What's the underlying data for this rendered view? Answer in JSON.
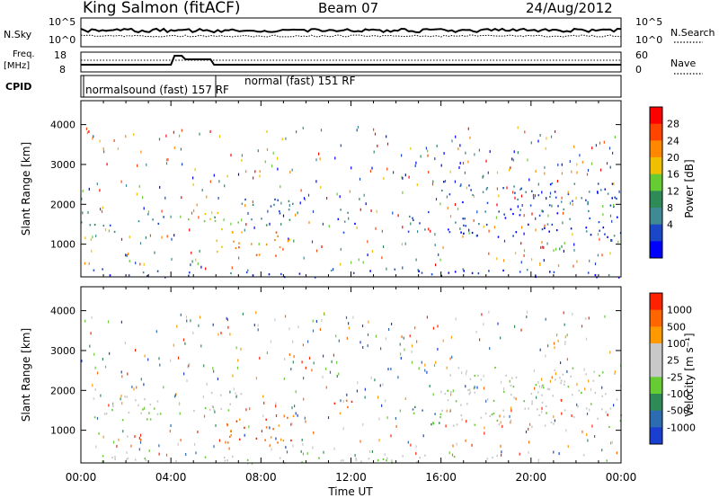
{
  "header": {
    "station": "King Salmon (fitACF)",
    "beam": "Beam 07",
    "date": "24/Aug/2012"
  },
  "top_panels": {
    "nsky_label": "N.Sky",
    "nsky_ticks": [
      "10^5",
      "10^0"
    ],
    "nsearch_label": "N.Search",
    "nsearch_ticks": [
      "10^5",
      "10^0"
    ],
    "freq_label": "Freq.",
    "freq_unit": "[MHz]",
    "freq_ticks": [
      "18",
      "8"
    ],
    "nave_label": "Nave",
    "nave_ticks": [
      "60",
      "0"
    ],
    "cpid_label": "CPID",
    "cpid_entries": [
      {
        "text": "normalsound (fast) 157 RF",
        "start_hour": 0.1
      },
      {
        "text": "normal (fast) 151 RF",
        "start_hour": 6.0
      }
    ]
  },
  "colors": {
    "power": [
      "#0000ff",
      "#1a46c8",
      "#3f8a94",
      "#2e8b57",
      "#66cc33",
      "#f0c000",
      "#ff8800",
      "#ff4400",
      "#ff0000"
    ],
    "velocity": [
      "#1a3fd0",
      "#2d6cb0",
      "#2e8b57",
      "#66cc33",
      "#c8c8c8",
      "#c8c8c8",
      "#ff9900",
      "#ff6600",
      "#ff2200"
    ]
  },
  "chart_data": [
    {
      "type": "heatmap",
      "panel": "power",
      "ylabel": "Slant Range [km]",
      "xlabel": "Time UT",
      "xlim": [
        0,
        24
      ],
      "ylim": [
        180,
        4600
      ],
      "xticks": [
        "00:00",
        "04:00",
        "08:00",
        "12:00",
        "16:00",
        "20:00",
        "00:00"
      ],
      "yticks": [
        1000,
        2000,
        3000,
        4000
      ],
      "colorbar": {
        "label": "Power [dB]",
        "ticks": [
          4,
          8,
          12,
          16,
          20,
          24,
          28
        ]
      },
      "regions": [
        {
          "t": [
            0.0,
            1.8
          ],
          "r": [
            1250,
            1600
          ],
          "level": 2
        },
        {
          "t": [
            1.8,
            3.8
          ],
          "r": [
            1500,
            1800
          ],
          "level": 1
        },
        {
          "t": [
            4.6,
            7.2
          ],
          "r": [
            1550,
            1900
          ],
          "level": 4
        },
        {
          "t": [
            6.0,
            9.0
          ],
          "r": [
            650,
            1400
          ],
          "level": 6
        },
        {
          "t": [
            7.0,
            9.5
          ],
          "r": [
            1500,
            2200
          ],
          "level": 2
        },
        {
          "t": [
            11.2,
            12.2
          ],
          "r": [
            1200,
            1900
          ],
          "level": 1
        },
        {
          "t": [
            14.5,
            15.5
          ],
          "r": [
            1100,
            1900
          ],
          "level": 1
        },
        {
          "t": [
            16.0,
            24.0
          ],
          "r": [
            1200,
            2600
          ],
          "level": 1
        },
        {
          "t": [
            0.0,
            24.0
          ],
          "r": [
            180,
            400
          ],
          "level": 1
        }
      ]
    },
    {
      "type": "heatmap",
      "panel": "velocity",
      "ylabel": "Slant Range [km]",
      "xlabel": "Time UT",
      "xlim": [
        0,
        24
      ],
      "ylim": [
        180,
        4600
      ],
      "xticks": [
        "00:00",
        "04:00",
        "08:00",
        "12:00",
        "16:00",
        "20:00",
        "00:00"
      ],
      "yticks": [
        1000,
        2000,
        3000,
        4000
      ],
      "colorbar": {
        "label": "Velocity [m s⁻¹]",
        "ticks": [
          1000,
          500,
          100,
          25,
          -25,
          -100,
          -500,
          -1000
        ]
      },
      "regions": [
        {
          "t": [
            0.0,
            3.8
          ],
          "r": [
            1250,
            1900
          ],
          "level": 4
        },
        {
          "t": [
            4.6,
            7.2
          ],
          "r": [
            1500,
            2000
          ],
          "level": 4
        },
        {
          "t": [
            6.2,
            9.6
          ],
          "r": [
            700,
            1400
          ],
          "level": 7
        },
        {
          "t": [
            11.2,
            12.2
          ],
          "r": [
            1200,
            1800
          ],
          "level": 7
        },
        {
          "t": [
            14.5,
            16.0
          ],
          "r": [
            1100,
            1800
          ],
          "level": 2
        },
        {
          "t": [
            16.0,
            24.0
          ],
          "r": [
            1100,
            2600
          ],
          "level": 4
        },
        {
          "t": [
            0.0,
            24.0
          ],
          "r": [
            180,
            400
          ],
          "level": 4
        }
      ]
    }
  ]
}
